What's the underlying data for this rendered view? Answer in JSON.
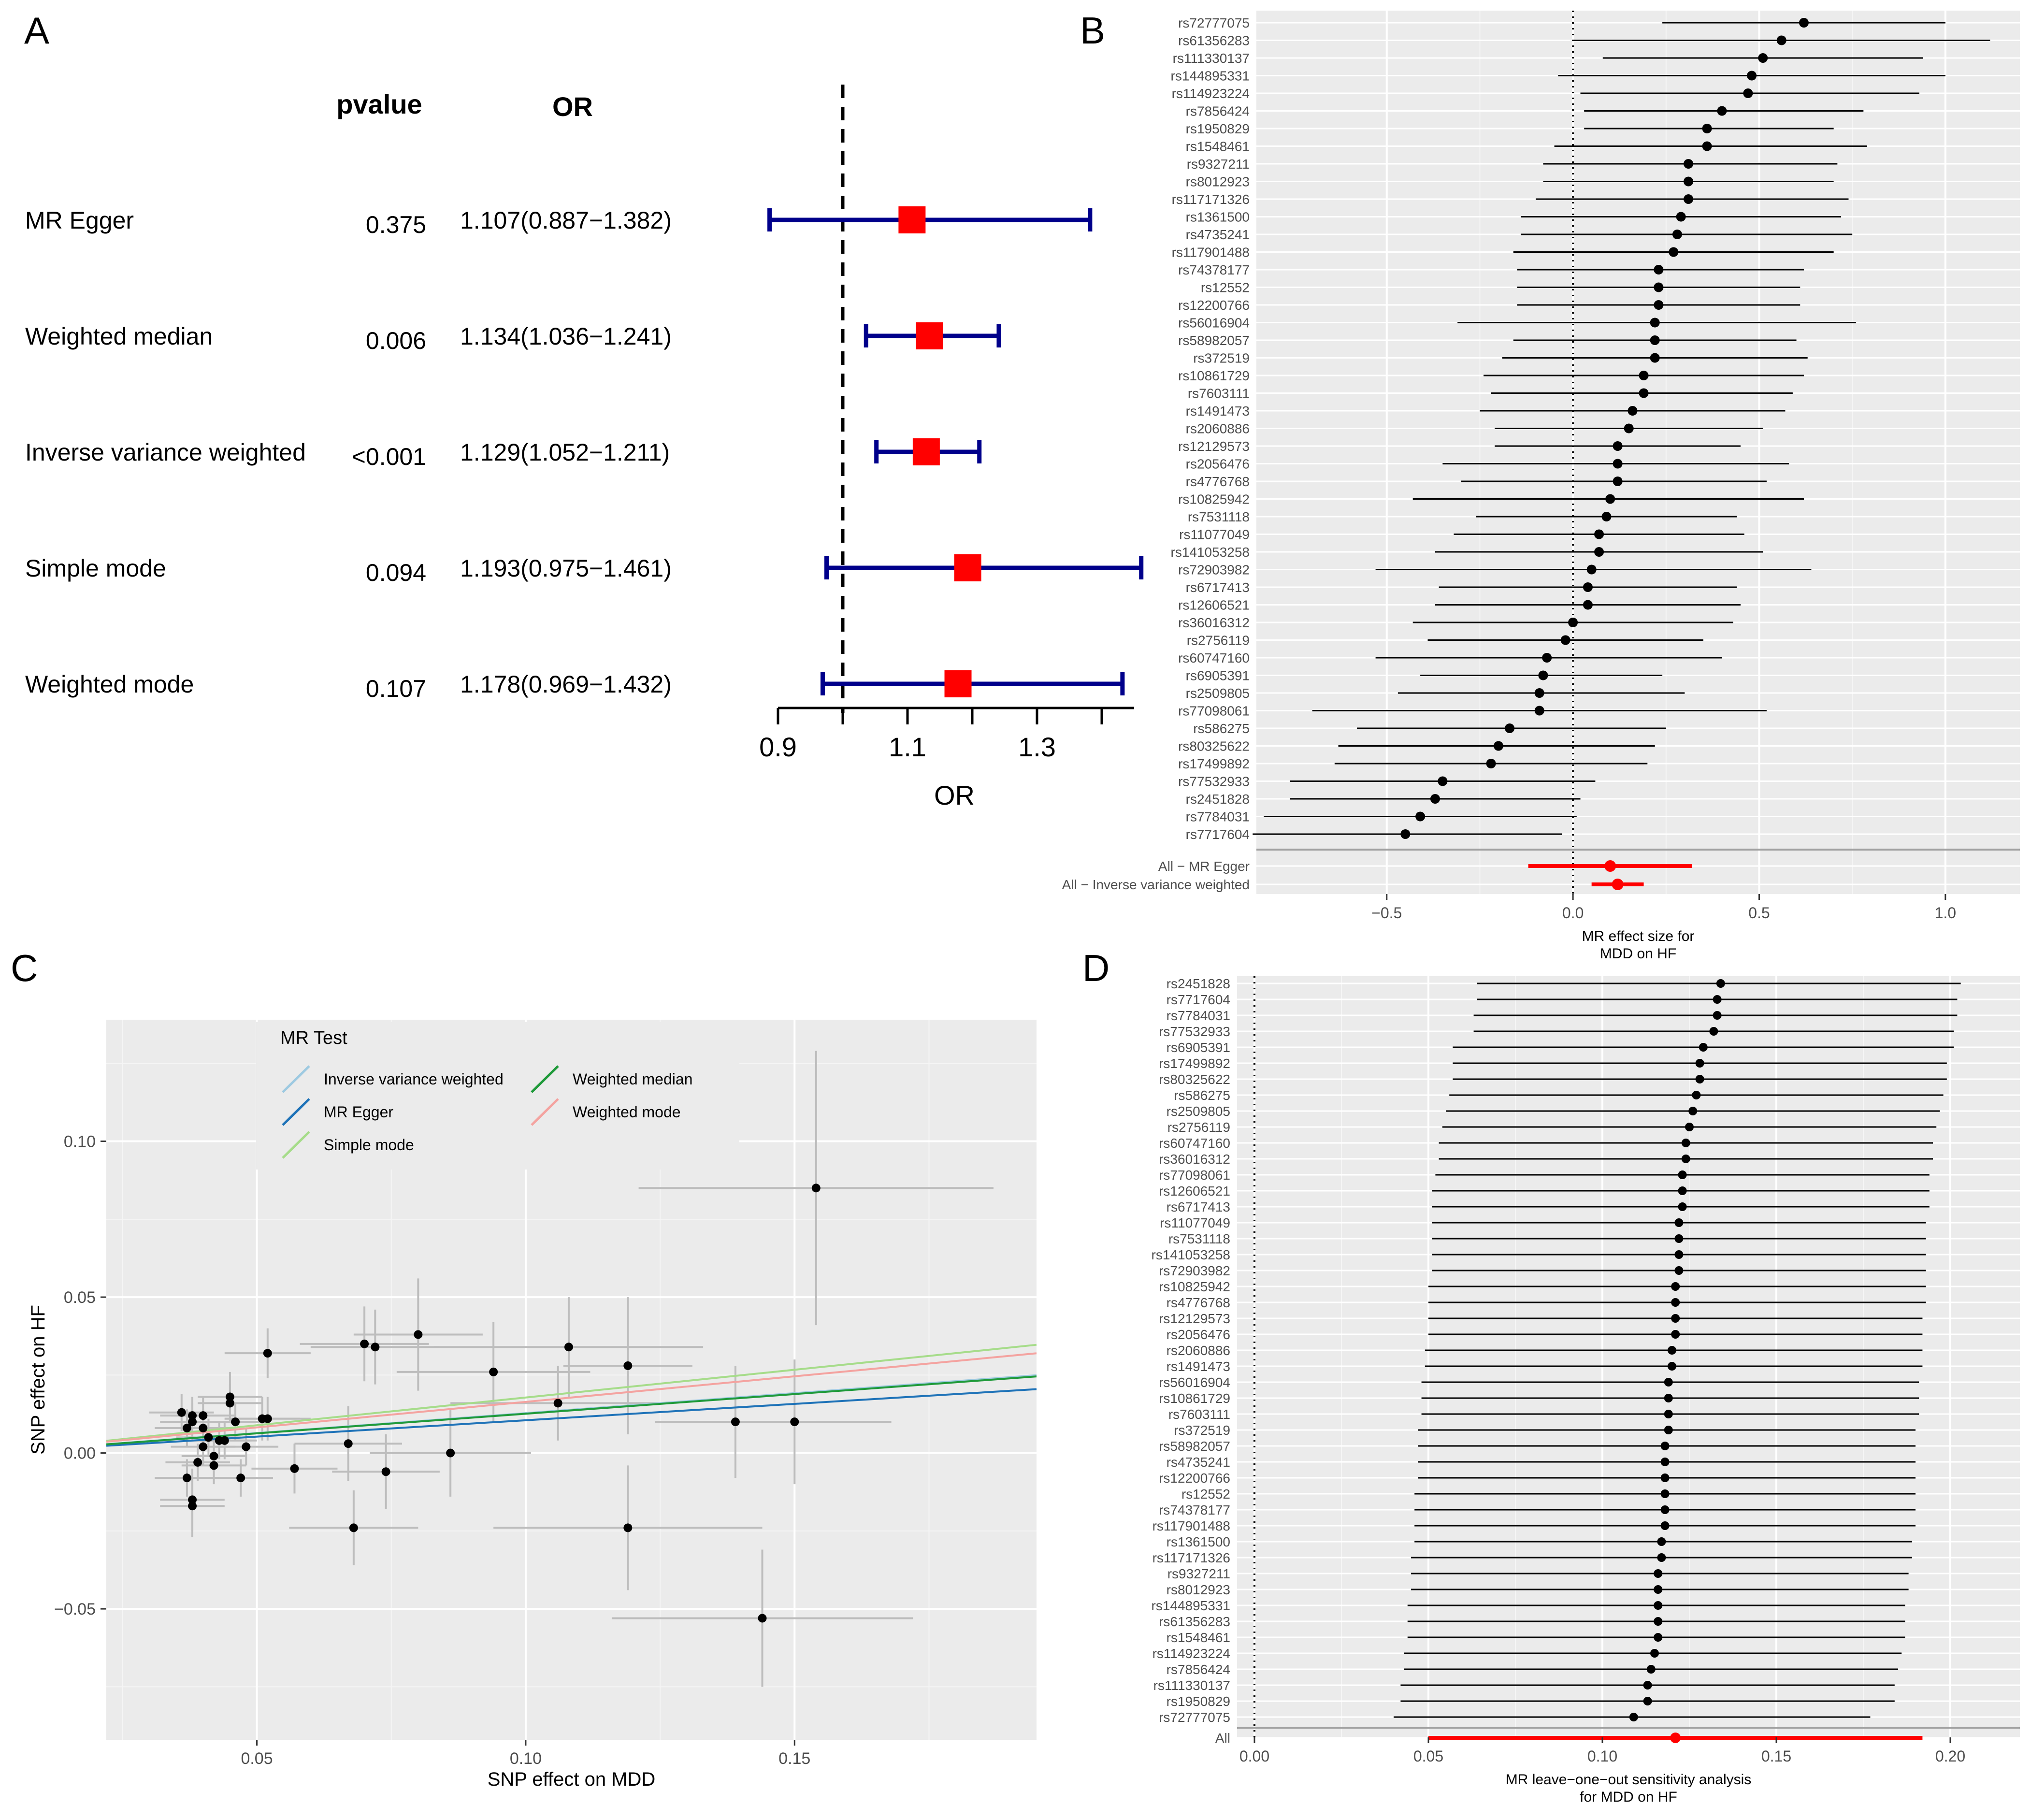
{
  "panels": {
    "a": {
      "letter": "A"
    },
    "b": {
      "letter": "B"
    },
    "c": {
      "letter": "C"
    },
    "d": {
      "letter": "D"
    }
  },
  "chart_data": [
    {
      "id": "A",
      "type": "forest",
      "header_pvalue": "pvalue",
      "header_or": "OR",
      "xlabel": "OR",
      "xlim": [
        0.9,
        1.45
      ],
      "reference": 1.0,
      "ticks": [
        0.9,
        1.1,
        1.3
      ],
      "tick_labels": [
        "0.9",
        "1.1",
        "1.3"
      ],
      "colors": {
        "ci": "#00008B",
        "point": "#FF0000"
      },
      "rows": [
        {
          "method": "MR Egger",
          "pvalue": "0.375",
          "or_text": "1.107(0.887−1.382)",
          "or": 1.107,
          "lo": 0.887,
          "hi": 1.382
        },
        {
          "method": "Weighted median",
          "pvalue": "0.006",
          "or_text": "1.134(1.036−1.241)",
          "or": 1.134,
          "lo": 1.036,
          "hi": 1.241
        },
        {
          "method": "Inverse variance weighted",
          "pvalue": "<0.001",
          "or_text": "1.129(1.052−1.211)",
          "or": 1.129,
          "lo": 1.052,
          "hi": 1.211
        },
        {
          "method": "Simple mode",
          "pvalue": "0.094",
          "or_text": "1.193(0.975−1.461)",
          "or": 1.193,
          "lo": 0.975,
          "hi": 1.461
        },
        {
          "method": "Weighted mode",
          "pvalue": "0.107",
          "or_text": "1.178(0.969−1.432)",
          "or": 1.178,
          "lo": 0.969,
          "hi": 1.432
        }
      ]
    },
    {
      "id": "B",
      "type": "forest",
      "xlabel_line1": "MR effect size for",
      "xlabel_line2": "MDD on HF",
      "xlim": [
        -0.85,
        1.2
      ],
      "reference": 0,
      "ticks": [
        -0.5,
        0.0,
        0.5,
        1.0
      ],
      "tick_labels": [
        "−0.5",
        "0.0",
        "0.5",
        "1.0"
      ],
      "snps": [
        {
          "name": "rs72777075",
          "b": 0.62,
          "lo": 0.24,
          "hi": 1.0
        },
        {
          "name": "rs61356283",
          "b": 0.56,
          "lo": 0.0,
          "hi": 1.12
        },
        {
          "name": "rs111330137",
          "b": 0.51,
          "lo": 0.08,
          "hi": 0.94
        },
        {
          "name": "rs144895331",
          "b": 0.48,
          "lo": -0.04,
          "hi": 1.0
        },
        {
          "name": "rs114923224",
          "b": 0.47,
          "lo": 0.02,
          "hi": 0.93
        },
        {
          "name": "rs7856424",
          "b": 0.4,
          "lo": 0.03,
          "hi": 0.78
        },
        {
          "name": "rs1950829",
          "b": 0.36,
          "lo": 0.03,
          "hi": 0.7
        },
        {
          "name": "rs1548461",
          "b": 0.36,
          "lo": -0.05,
          "hi": 0.79
        },
        {
          "name": "rs9327211",
          "b": 0.31,
          "lo": -0.08,
          "hi": 0.71
        },
        {
          "name": "rs8012923",
          "b": 0.31,
          "lo": -0.08,
          "hi": 0.7
        },
        {
          "name": "rs117171326",
          "b": 0.31,
          "lo": -0.1,
          "hi": 0.74
        },
        {
          "name": "rs1361500",
          "b": 0.29,
          "lo": -0.14,
          "hi": 0.72
        },
        {
          "name": "rs4735241",
          "b": 0.28,
          "lo": -0.14,
          "hi": 0.75
        },
        {
          "name": "rs117901488",
          "b": 0.27,
          "lo": -0.16,
          "hi": 0.7
        },
        {
          "name": "rs74378177",
          "b": 0.23,
          "lo": -0.15,
          "hi": 0.62
        },
        {
          "name": "rs12552",
          "b": 0.23,
          "lo": -0.15,
          "hi": 0.61
        },
        {
          "name": "rs12200766",
          "b": 0.23,
          "lo": -0.15,
          "hi": 0.61
        },
        {
          "name": "rs56016904",
          "b": 0.22,
          "lo": -0.31,
          "hi": 0.76
        },
        {
          "name": "rs58982057",
          "b": 0.22,
          "lo": -0.16,
          "hi": 0.6
        },
        {
          "name": "rs372519",
          "b": 0.22,
          "lo": -0.19,
          "hi": 0.63
        },
        {
          "name": "rs10861729",
          "b": 0.19,
          "lo": -0.24,
          "hi": 0.62
        },
        {
          "name": "rs7603111",
          "b": 0.19,
          "lo": -0.22,
          "hi": 0.59
        },
        {
          "name": "rs1491473",
          "b": 0.16,
          "lo": -0.25,
          "hi": 0.57
        },
        {
          "name": "rs2060886",
          "b": 0.15,
          "lo": -0.21,
          "hi": 0.51
        },
        {
          "name": "rs12129573",
          "b": 0.12,
          "lo": -0.21,
          "hi": 0.45
        },
        {
          "name": "rs2056476",
          "b": 0.12,
          "lo": -0.35,
          "hi": 0.58
        },
        {
          "name": "rs4776768",
          "b": 0.12,
          "lo": -0.3,
          "hi": 0.52
        },
        {
          "name": "rs10825942",
          "b": 0.1,
          "lo": -0.43,
          "hi": 0.62
        },
        {
          "name": "rs7531118",
          "b": 0.09,
          "lo": -0.26,
          "hi": 0.44
        },
        {
          "name": "rs11077049",
          "b": 0.07,
          "lo": -0.32,
          "hi": 0.46
        },
        {
          "name": "rs141053258",
          "b": 0.07,
          "lo": -0.37,
          "hi": 0.51
        },
        {
          "name": "rs72903982",
          "b": 0.05,
          "lo": -0.53,
          "hi": 0.64
        },
        {
          "name": "rs6717413",
          "b": 0.04,
          "lo": -0.36,
          "hi": 0.44
        },
        {
          "name": "rs12606521",
          "b": 0.04,
          "lo": -0.37,
          "hi": 0.45
        },
        {
          "name": "rs36016312",
          "b": 0.0,
          "lo": -0.43,
          "hi": 0.43
        },
        {
          "name": "rs2756119",
          "b": -0.02,
          "lo": -0.39,
          "hi": 0.35
        },
        {
          "name": "rs60747160",
          "b": -0.07,
          "lo": -0.53,
          "hi": 0.4
        },
        {
          "name": "rs6905391",
          "b": -0.08,
          "lo": -0.41,
          "hi": 0.24
        },
        {
          "name": "rs2509805",
          "b": -0.09,
          "lo": -0.47,
          "hi": 0.3
        },
        {
          "name": "rs77098061",
          "b": -0.09,
          "lo": -0.7,
          "hi": 0.52
        },
        {
          "name": "rs586275",
          "b": -0.17,
          "lo": -0.58,
          "hi": 0.25
        },
        {
          "name": "rs80325622",
          "b": -0.2,
          "lo": -0.63,
          "hi": 0.22
        },
        {
          "name": "rs17499892",
          "b": -0.22,
          "lo": -0.64,
          "hi": 0.2
        },
        {
          "name": "rs77532933",
          "b": -0.35,
          "lo": -0.76,
          "hi": 0.06
        },
        {
          "name": "rs2451828",
          "b": -0.37,
          "lo": -0.76,
          "hi": 0.02
        },
        {
          "name": "rs7784031",
          "b": -0.41,
          "lo": -0.83,
          "hi": 0.01
        },
        {
          "name": "rs7717604",
          "b": -0.45,
          "lo": -0.86,
          "hi": -0.03
        }
      ],
      "summary": [
        {
          "name": "All − MR Egger",
          "b": 0.1,
          "lo": -0.12,
          "hi": 0.32
        },
        {
          "name": "All − Inverse variance weighted",
          "b": 0.12,
          "lo": 0.05,
          "hi": 0.19
        }
      ]
    },
    {
      "id": "C",
      "type": "scatter",
      "xlabel": "SNP effect on MDD",
      "ylabel": "SNP effect on HF",
      "xlim": [
        0.022,
        0.195
      ],
      "ylim": [
        -0.092,
        0.139
      ],
      "xticks": [
        0.05,
        0.1,
        0.15
      ],
      "xtick_labels": [
        "0.05",
        "0.10",
        "0.15"
      ],
      "yticks": [
        -0.05,
        0.0,
        0.05,
        0.1
      ],
      "ytick_labels": [
        "−0.05",
        "0.00",
        "0.05",
        "0.10"
      ],
      "legend_title": "MR Test",
      "legend": [
        {
          "name": "Inverse variance weighted",
          "color": "#9ECAE1",
          "slope": 0.128
        },
        {
          "name": "MR Egger",
          "color": "#1F73B8",
          "slope": 0.105
        },
        {
          "name": "Simple mode",
          "color": "#A6DC8A",
          "slope": 0.178
        },
        {
          "name": "Weighted median",
          "color": "#1F9A3A",
          "slope": 0.126
        },
        {
          "name": "Weighted mode",
          "color": "#F4A3A0",
          "slope": 0.164
        }
      ],
      "points": [
        {
          "x": 0.154,
          "y": 0.085,
          "sx": 0.033,
          "sy": 0.044
        },
        {
          "x": 0.144,
          "y": -0.053,
          "sx": 0.028,
          "sy": 0.022
        },
        {
          "x": 0.15,
          "y": 0.01,
          "sx": 0.018,
          "sy": 0.02
        },
        {
          "x": 0.139,
          "y": 0.01,
          "sx": 0.015,
          "sy": 0.018
        },
        {
          "x": 0.119,
          "y": 0.028,
          "sx": 0.012,
          "sy": 0.022
        },
        {
          "x": 0.119,
          "y": -0.024,
          "sx": 0.025,
          "sy": 0.02
        },
        {
          "x": 0.108,
          "y": 0.034,
          "sx": 0.025,
          "sy": 0.016
        },
        {
          "x": 0.106,
          "y": 0.016,
          "sx": 0.02,
          "sy": 0.012
        },
        {
          "x": 0.094,
          "y": 0.026,
          "sx": 0.018,
          "sy": 0.016
        },
        {
          "x": 0.086,
          "y": 0.0,
          "sx": 0.015,
          "sy": 0.014
        },
        {
          "x": 0.08,
          "y": 0.038,
          "sx": 0.012,
          "sy": 0.018
        },
        {
          "x": 0.072,
          "y": 0.034,
          "sx": 0.012,
          "sy": 0.012
        },
        {
          "x": 0.07,
          "y": 0.035,
          "sx": 0.012,
          "sy": 0.012
        },
        {
          "x": 0.074,
          "y": -0.006,
          "sx": 0.01,
          "sy": 0.012
        },
        {
          "x": 0.068,
          "y": -0.024,
          "sx": 0.012,
          "sy": 0.012
        },
        {
          "x": 0.067,
          "y": 0.003,
          "sx": 0.01,
          "sy": 0.012
        },
        {
          "x": 0.057,
          "y": -0.005,
          "sx": 0.008,
          "sy": 0.008
        },
        {
          "x": 0.052,
          "y": 0.032,
          "sx": 0.008,
          "sy": 0.008
        },
        {
          "x": 0.052,
          "y": 0.011,
          "sx": 0.008,
          "sy": 0.007
        },
        {
          "x": 0.051,
          "y": 0.011,
          "sx": 0.007,
          "sy": 0.007
        },
        {
          "x": 0.048,
          "y": 0.002,
          "sx": 0.006,
          "sy": 0.006
        },
        {
          "x": 0.047,
          "y": -0.008,
          "sx": 0.006,
          "sy": 0.006
        },
        {
          "x": 0.046,
          "y": 0.01,
          "sx": 0.006,
          "sy": 0.006
        },
        {
          "x": 0.045,
          "y": 0.018,
          "sx": 0.006,
          "sy": 0.008
        },
        {
          "x": 0.045,
          "y": 0.016,
          "sx": 0.006,
          "sy": 0.006
        },
        {
          "x": 0.044,
          "y": 0.004,
          "sx": 0.006,
          "sy": 0.006
        },
        {
          "x": 0.043,
          "y": 0.004,
          "sx": 0.006,
          "sy": 0.006
        },
        {
          "x": 0.042,
          "y": -0.001,
          "sx": 0.006,
          "sy": 0.006
        },
        {
          "x": 0.042,
          "y": -0.004,
          "sx": 0.006,
          "sy": 0.006
        },
        {
          "x": 0.041,
          "y": 0.005,
          "sx": 0.006,
          "sy": 0.006
        },
        {
          "x": 0.04,
          "y": 0.008,
          "sx": 0.006,
          "sy": 0.006
        },
        {
          "x": 0.04,
          "y": 0.012,
          "sx": 0.006,
          "sy": 0.006
        },
        {
          "x": 0.04,
          "y": 0.002,
          "sx": 0.006,
          "sy": 0.006
        },
        {
          "x": 0.039,
          "y": -0.003,
          "sx": 0.006,
          "sy": 0.006
        },
        {
          "x": 0.038,
          "y": 0.01,
          "sx": 0.006,
          "sy": 0.006
        },
        {
          "x": 0.038,
          "y": 0.012,
          "sx": 0.006,
          "sy": 0.006
        },
        {
          "x": 0.038,
          "y": -0.015,
          "sx": 0.006,
          "sy": 0.01
        },
        {
          "x": 0.038,
          "y": -0.017,
          "sx": 0.006,
          "sy": 0.01
        },
        {
          "x": 0.037,
          "y": -0.008,
          "sx": 0.006,
          "sy": 0.006
        },
        {
          "x": 0.037,
          "y": 0.008,
          "sx": 0.006,
          "sy": 0.006
        },
        {
          "x": 0.036,
          "y": 0.013,
          "sx": 0.006,
          "sy": 0.006
        }
      ]
    },
    {
      "id": "D",
      "type": "forest",
      "xlabel_line1": "MR leave−one−out sensitivity analysis",
      "xlabel_line2": "for MDD on HF",
      "xlim": [
        -0.005,
        0.22
      ],
      "reference": 0,
      "ticks": [
        0.0,
        0.05,
        0.1,
        0.15,
        0.2
      ],
      "tick_labels": [
        "0.00",
        "0.05",
        "0.10",
        "0.15",
        "0.20"
      ],
      "snps": [
        {
          "name": "rs2451828",
          "b": 0.134,
          "lo": 0.064,
          "hi": 0.203
        },
        {
          "name": "rs7717604",
          "b": 0.133,
          "lo": 0.064,
          "hi": 0.202
        },
        {
          "name": "rs7784031",
          "b": 0.133,
          "lo": 0.063,
          "hi": 0.202
        },
        {
          "name": "rs77532933",
          "b": 0.132,
          "lo": 0.063,
          "hi": 0.201
        },
        {
          "name": "rs6905391",
          "b": 0.129,
          "lo": 0.057,
          "hi": 0.201
        },
        {
          "name": "rs17499892",
          "b": 0.128,
          "lo": 0.057,
          "hi": 0.199
        },
        {
          "name": "rs80325622",
          "b": 0.128,
          "lo": 0.057,
          "hi": 0.199
        },
        {
          "name": "rs586275",
          "b": 0.127,
          "lo": 0.056,
          "hi": 0.198
        },
        {
          "name": "rs2509805",
          "b": 0.126,
          "lo": 0.055,
          "hi": 0.197
        },
        {
          "name": "rs2756119",
          "b": 0.125,
          "lo": 0.054,
          "hi": 0.196
        },
        {
          "name": "rs60747160",
          "b": 0.124,
          "lo": 0.053,
          "hi": 0.195
        },
        {
          "name": "rs36016312",
          "b": 0.124,
          "lo": 0.053,
          "hi": 0.195
        },
        {
          "name": "rs77098061",
          "b": 0.123,
          "lo": 0.052,
          "hi": 0.194
        },
        {
          "name": "rs12606521",
          "b": 0.123,
          "lo": 0.051,
          "hi": 0.194
        },
        {
          "name": "rs6717413",
          "b": 0.123,
          "lo": 0.051,
          "hi": 0.194
        },
        {
          "name": "rs11077049",
          "b": 0.122,
          "lo": 0.051,
          "hi": 0.193
        },
        {
          "name": "rs7531118",
          "b": 0.122,
          "lo": 0.051,
          "hi": 0.193
        },
        {
          "name": "rs141053258",
          "b": 0.122,
          "lo": 0.051,
          "hi": 0.193
        },
        {
          "name": "rs72903982",
          "b": 0.122,
          "lo": 0.051,
          "hi": 0.193
        },
        {
          "name": "rs10825942",
          "b": 0.121,
          "lo": 0.05,
          "hi": 0.193
        },
        {
          "name": "rs4776768",
          "b": 0.121,
          "lo": 0.05,
          "hi": 0.193
        },
        {
          "name": "rs12129573",
          "b": 0.121,
          "lo": 0.05,
          "hi": 0.192
        },
        {
          "name": "rs2056476",
          "b": 0.121,
          "lo": 0.05,
          "hi": 0.192
        },
        {
          "name": "rs2060886",
          "b": 0.12,
          "lo": 0.049,
          "hi": 0.192
        },
        {
          "name": "rs1491473",
          "b": 0.12,
          "lo": 0.049,
          "hi": 0.192
        },
        {
          "name": "rs56016904",
          "b": 0.119,
          "lo": 0.048,
          "hi": 0.191
        },
        {
          "name": "rs10861729",
          "b": 0.119,
          "lo": 0.048,
          "hi": 0.191
        },
        {
          "name": "rs7603111",
          "b": 0.119,
          "lo": 0.048,
          "hi": 0.191
        },
        {
          "name": "rs372519",
          "b": 0.119,
          "lo": 0.047,
          "hi": 0.19
        },
        {
          "name": "rs58982057",
          "b": 0.118,
          "lo": 0.047,
          "hi": 0.19
        },
        {
          "name": "rs4735241",
          "b": 0.118,
          "lo": 0.047,
          "hi": 0.19
        },
        {
          "name": "rs12200766",
          "b": 0.118,
          "lo": 0.047,
          "hi": 0.19
        },
        {
          "name": "rs12552",
          "b": 0.118,
          "lo": 0.046,
          "hi": 0.19
        },
        {
          "name": "rs74378177",
          "b": 0.118,
          "lo": 0.046,
          "hi": 0.19
        },
        {
          "name": "rs117901488",
          "b": 0.118,
          "lo": 0.046,
          "hi": 0.19
        },
        {
          "name": "rs1361500",
          "b": 0.117,
          "lo": 0.046,
          "hi": 0.189
        },
        {
          "name": "rs117171326",
          "b": 0.117,
          "lo": 0.045,
          "hi": 0.189
        },
        {
          "name": "rs9327211",
          "b": 0.116,
          "lo": 0.045,
          "hi": 0.188
        },
        {
          "name": "rs8012923",
          "b": 0.116,
          "lo": 0.045,
          "hi": 0.188
        },
        {
          "name": "rs144895331",
          "b": 0.116,
          "lo": 0.044,
          "hi": 0.187
        },
        {
          "name": "rs61356283",
          "b": 0.116,
          "lo": 0.044,
          "hi": 0.187
        },
        {
          "name": "rs1548461",
          "b": 0.116,
          "lo": 0.044,
          "hi": 0.187
        },
        {
          "name": "rs114923224",
          "b": 0.115,
          "lo": 0.043,
          "hi": 0.186
        },
        {
          "name": "rs7856424",
          "b": 0.114,
          "lo": 0.043,
          "hi": 0.185
        },
        {
          "name": "rs111330137",
          "b": 0.113,
          "lo": 0.042,
          "hi": 0.184
        },
        {
          "name": "rs1950829",
          "b": 0.113,
          "lo": 0.042,
          "hi": 0.184
        },
        {
          "name": "rs72777075",
          "b": 0.109,
          "lo": 0.04,
          "hi": 0.177
        }
      ],
      "summary": [
        {
          "name": "All",
          "b": 0.121,
          "lo": 0.05,
          "hi": 0.192
        }
      ]
    }
  ]
}
